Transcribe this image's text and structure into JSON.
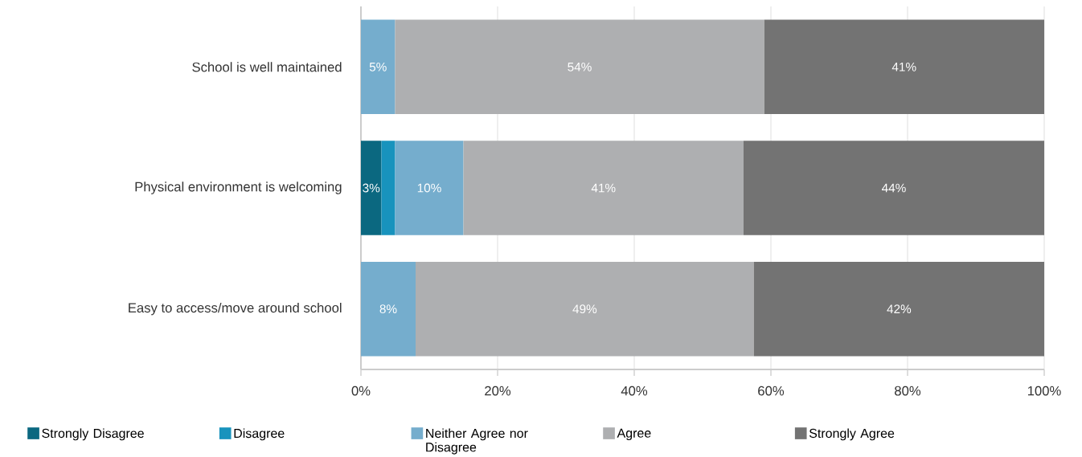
{
  "chart_data": {
    "type": "bar",
    "orientation": "horizontal",
    "stacked": true,
    "categories": [
      "School is well maintained",
      "Physical environment is welcoming",
      "Easy to access/move around school"
    ],
    "xlim": [
      0,
      100
    ],
    "xticks": [
      {
        "value": 0,
        "label": "0%"
      },
      {
        "value": 20,
        "label": "20%"
      },
      {
        "value": 40,
        "label": "40%"
      },
      {
        "value": 60,
        "label": "60%"
      },
      {
        "value": 80,
        "label": "80%"
      },
      {
        "value": 100,
        "label": "100%"
      }
    ],
    "grid": "x",
    "legend": "bottom",
    "series": [
      {
        "name": "Strongly Disagree",
        "color": "#0b6880",
        "values": [
          null,
          3,
          null
        ],
        "value_labels": [
          null,
          "3%",
          null
        ]
      },
      {
        "name": "Disagree",
        "color": "#1893bd",
        "values": [
          null,
          2,
          null
        ],
        "value_labels": [
          null,
          null,
          null
        ]
      },
      {
        "name": "Neither Agree nor Disagree",
        "color": "#75adcd",
        "values": [
          5,
          10,
          8
        ],
        "value_labels": [
          "5%",
          "10%",
          "8%"
        ]
      },
      {
        "name": "Agree",
        "color": "#aeafb1",
        "values": [
          54,
          41,
          49.5
        ],
        "value_labels": [
          "54%",
          "41%",
          "49%"
        ]
      },
      {
        "name": "Strongly Agree",
        "color": "#737373",
        "values": [
          41,
          44,
          42.5
        ],
        "value_labels": [
          "41%",
          "44%",
          "42%"
        ]
      }
    ]
  }
}
